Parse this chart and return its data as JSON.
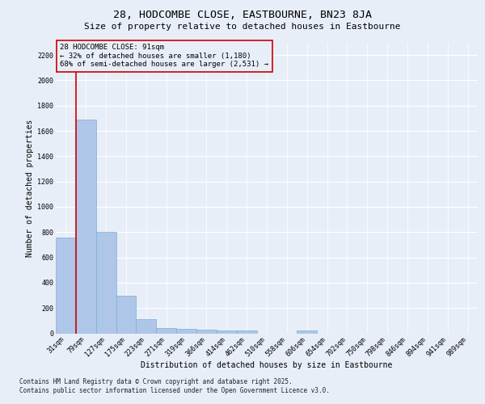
{
  "title": "28, HODCOMBE CLOSE, EASTBOURNE, BN23 8JA",
  "subtitle": "Size of property relative to detached houses in Eastbourne",
  "xlabel": "Distribution of detached houses by size in Eastbourne",
  "ylabel": "Number of detached properties",
  "categories": [
    "31sqm",
    "79sqm",
    "127sqm",
    "175sqm",
    "223sqm",
    "271sqm",
    "319sqm",
    "366sqm",
    "414sqm",
    "462sqm",
    "510sqm",
    "558sqm",
    "606sqm",
    "654sqm",
    "702sqm",
    "750sqm",
    "798sqm",
    "846sqm",
    "894sqm",
    "941sqm",
    "989sqm"
  ],
  "values": [
    760,
    1690,
    800,
    300,
    110,
    40,
    35,
    30,
    20,
    20,
    0,
    0,
    20,
    0,
    0,
    0,
    0,
    0,
    0,
    0,
    0
  ],
  "bar_color": "#aec6e8",
  "bar_edge_color": "#7bafd4",
  "vline_color": "#cc0000",
  "vline_x": 0.5,
  "annotation_title": "28 HODCOMBE CLOSE: 91sqm",
  "annotation_line2": "← 32% of detached houses are smaller (1,180)",
  "annotation_line3": "68% of semi-detached houses are larger (2,531) →",
  "annotation_box_color": "#cc0000",
  "background_color": "#e8eef8",
  "plot_bg_color": "#e8eef8",
  "ylim": [
    0,
    2300
  ],
  "yticks": [
    0,
    200,
    400,
    600,
    800,
    1000,
    1200,
    1400,
    1600,
    1800,
    2000,
    2200
  ],
  "grid_color": "#ffffff",
  "footnote_line1": "Contains HM Land Registry data © Crown copyright and database right 2025.",
  "footnote_line2": "Contains public sector information licensed under the Open Government Licence v3.0.",
  "title_fontsize": 9.5,
  "subtitle_fontsize": 8,
  "axis_label_fontsize": 7,
  "tick_fontsize": 6,
  "annotation_fontsize": 6.5,
  "footnote_fontsize": 5.5
}
